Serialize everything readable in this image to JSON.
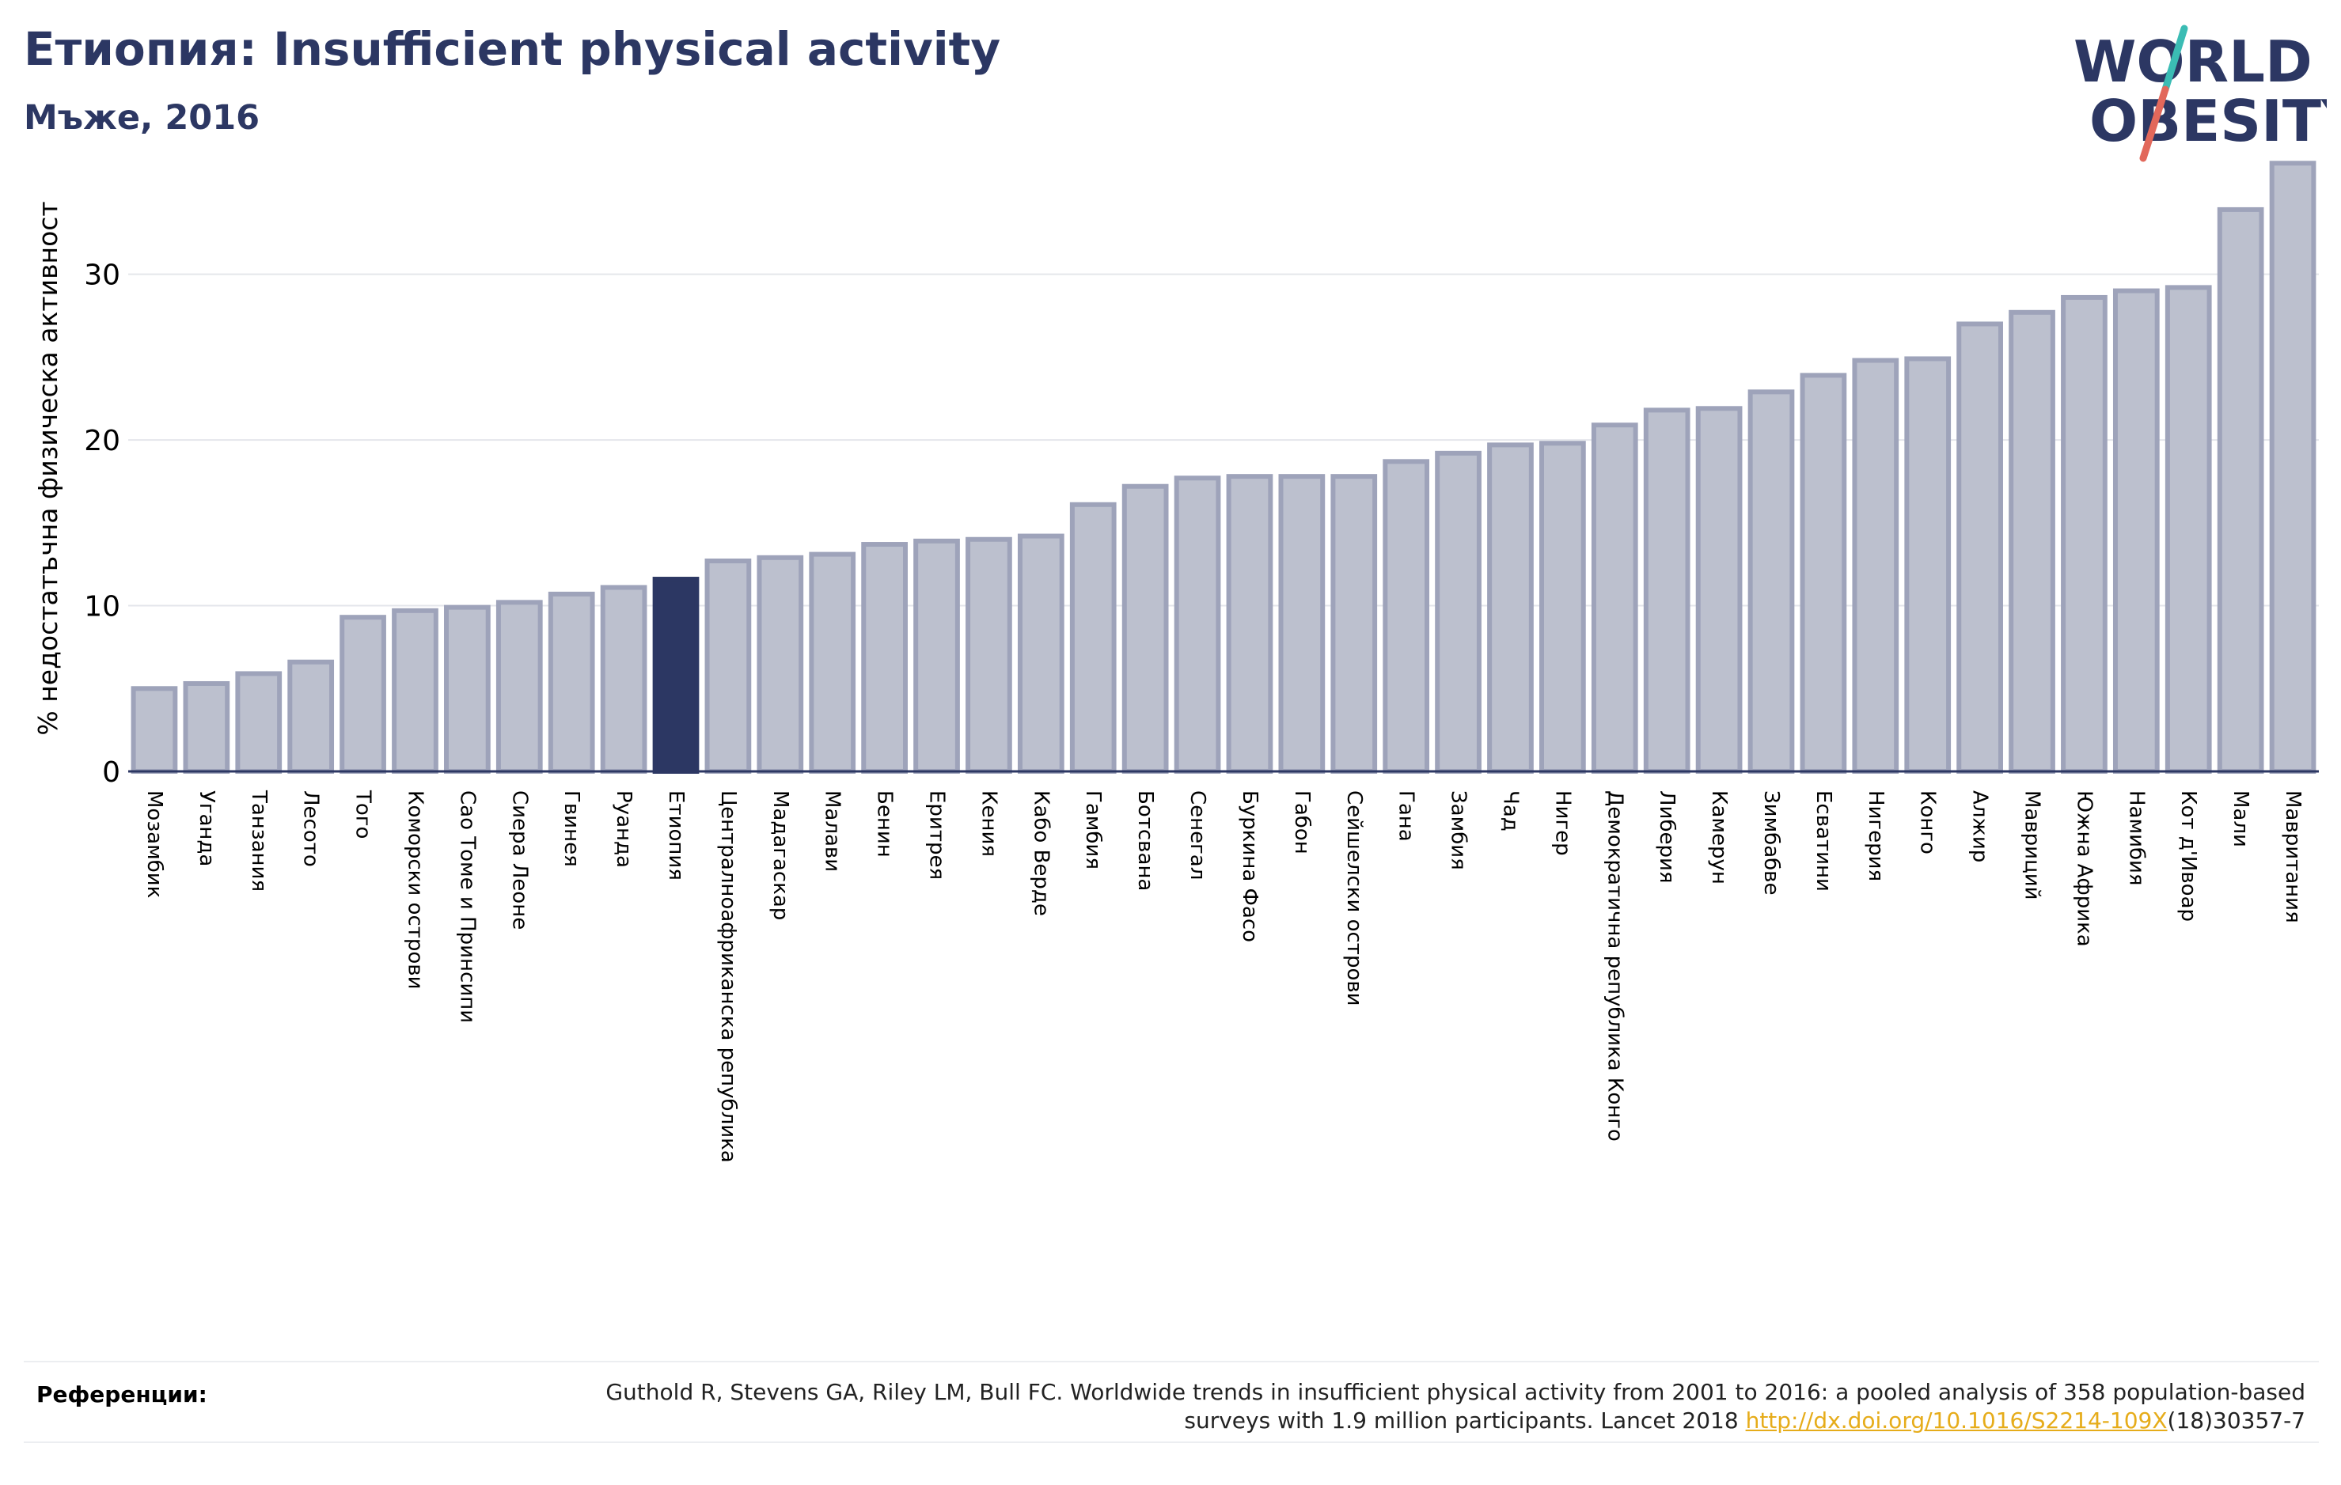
{
  "header": {
    "title": "Етиопия: Insufficient physical activity",
    "subtitle": "Мъже, 2016"
  },
  "logo": {
    "line1": "WORLD",
    "line2": "OBESITY"
  },
  "colors": {
    "bar": "#bcc0ce",
    "bar_edge": "#9ea3ba",
    "highlight": "#2c3763",
    "text_dark": "#2c3763",
    "link": "#e6ac1a",
    "logo_teal": "#3bbcb4",
    "logo_red": "#e2685b"
  },
  "chart_data": {
    "type": "bar",
    "ylabel": "% недостатъчна физическа активност",
    "ylim": [
      0,
      37
    ],
    "yticks": [
      0,
      10,
      20,
      30
    ],
    "grid": true,
    "highlight": "Етиопия",
    "categories": [
      "Мозамбик",
      "Уганда",
      "Танзания",
      "Лесото",
      "Того",
      "Коморски острови",
      "Сао Томе и Принсипи",
      "Сиера Леоне",
      "Гвинея",
      "Руанда",
      "Етиопия",
      "Централноафриканска република",
      "Мадагаскар",
      "Малави",
      "Бенин",
      "Еритрея",
      "Кения",
      "Кабо Верде",
      "Гамбия",
      "Ботсвана",
      "Сенегал",
      "Буркина Фасо",
      "Габон",
      "Сейшелски острови",
      "Гана",
      "Замбия",
      "Чад",
      "Нигер",
      "Демократична република Конго",
      "Либерия",
      "Камерун",
      "Зимбабве",
      "Есватини",
      "Нигерия",
      "Конго",
      "Алжир",
      "Мавриций",
      "Южна Африка",
      "Намибия",
      "Кот д'Ивоар",
      "Мали",
      "Мавритания"
    ],
    "values": [
      5.0,
      5.3,
      5.9,
      6.6,
      9.3,
      9.7,
      9.9,
      10.2,
      10.7,
      11.1,
      11.6,
      12.7,
      12.9,
      13.1,
      13.7,
      13.9,
      14.0,
      14.2,
      16.1,
      17.2,
      17.7,
      17.8,
      17.8,
      17.8,
      18.7,
      19.2,
      19.7,
      19.8,
      20.9,
      21.8,
      21.9,
      22.9,
      23.9,
      24.8,
      24.9,
      27.0,
      27.7,
      28.6,
      29.0,
      29.2,
      33.9,
      36.7
    ]
  },
  "references": {
    "label": "Референции:",
    "text_before": "Guthold R, Stevens GA, Riley LM, Bull FC. Worldwide trends in insufficient physical activity from 2001 to 2016: a pooled analysis of 358 population-based surveys with 1.9 million participants. Lancet 2018 ",
    "link": "http://dx.doi.org/10.1016/S2214-109X",
    "text_after": "(18)30357-7"
  }
}
